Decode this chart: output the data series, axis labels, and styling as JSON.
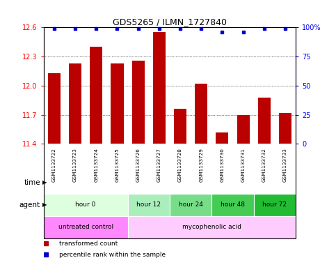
{
  "title": "GDS5265 / ILMN_1727840",
  "samples": [
    "GSM1133722",
    "GSM1133723",
    "GSM1133724",
    "GSM1133725",
    "GSM1133726",
    "GSM1133727",
    "GSM1133728",
    "GSM1133729",
    "GSM1133730",
    "GSM1133731",
    "GSM1133732",
    "GSM1133733"
  ],
  "bar_values": [
    12.13,
    12.23,
    12.4,
    12.23,
    12.26,
    12.55,
    11.76,
    12.02,
    11.52,
    11.7,
    11.88,
    11.72
  ],
  "percentile_values": [
    99,
    99,
    99,
    99,
    99,
    99,
    99,
    99,
    96,
    96,
    99,
    99
  ],
  "bar_color": "#BB0000",
  "percentile_color": "#0000CC",
  "ylim": [
    11.4,
    12.6
  ],
  "yticks": [
    11.4,
    11.7,
    12.0,
    12.3,
    12.6
  ],
  "right_yticks": [
    0,
    25,
    50,
    75,
    100
  ],
  "right_ylim": [
    0,
    100
  ],
  "time_groups": [
    {
      "label": "hour 0",
      "start": 0,
      "end": 4,
      "color": "#ddffdd"
    },
    {
      "label": "hour 12",
      "start": 4,
      "end": 6,
      "color": "#aaeebb"
    },
    {
      "label": "hour 24",
      "start": 6,
      "end": 8,
      "color": "#77dd88"
    },
    {
      "label": "hour 48",
      "start": 8,
      "end": 10,
      "color": "#44cc55"
    },
    {
      "label": "hour 72",
      "start": 10,
      "end": 12,
      "color": "#22bb33"
    }
  ],
  "agent_groups": [
    {
      "label": "untreated control",
      "start": 0,
      "end": 4,
      "color": "#ff88ff"
    },
    {
      "label": "mycophenolic acid",
      "start": 4,
      "end": 12,
      "color": "#ffccff"
    }
  ],
  "sample_bg": "#c8c8c8",
  "legend_items": [
    {
      "label": "transformed count",
      "color": "#BB0000"
    },
    {
      "label": "percentile rank within the sample",
      "color": "#0000CC"
    }
  ]
}
